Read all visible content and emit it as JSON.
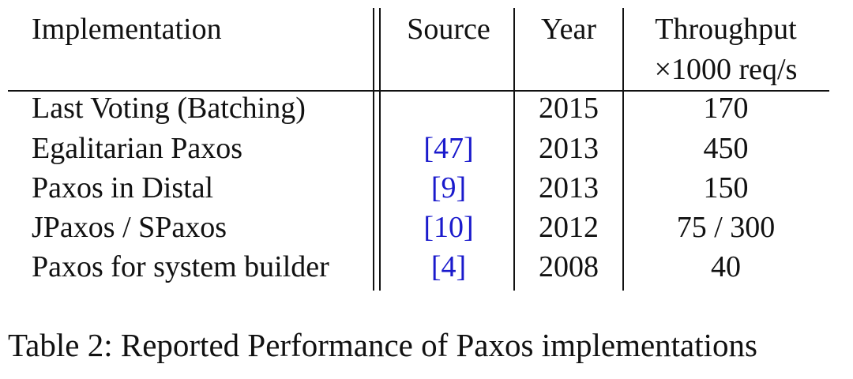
{
  "table": {
    "headers": {
      "implementation": "Implementation",
      "source": "Source",
      "year": "Year",
      "throughput_line1": "Throughput",
      "throughput_line2": "×1000 req/s"
    },
    "rows": [
      {
        "implementation": "Last Voting (Batching)",
        "source": "",
        "year": "2015",
        "throughput": "170"
      },
      {
        "implementation": "Egalitarian Paxos",
        "source": "[47]",
        "year": "2013",
        "throughput": "450"
      },
      {
        "implementation": "Paxos in Distal",
        "source": "[9]",
        "year": "2013",
        "throughput": "150"
      },
      {
        "implementation": "JPaxos / SPaxos",
        "source": "[10]",
        "year": "2012",
        "throughput": "75 / 300"
      },
      {
        "implementation": "Paxos for system builder",
        "source": "[4]",
        "year": "2008",
        "throughput": "40"
      }
    ]
  },
  "caption": "Table 2: Reported Performance of Paxos implementations",
  "colors": {
    "citation": "#1a1acc",
    "text": "#111111"
  }
}
